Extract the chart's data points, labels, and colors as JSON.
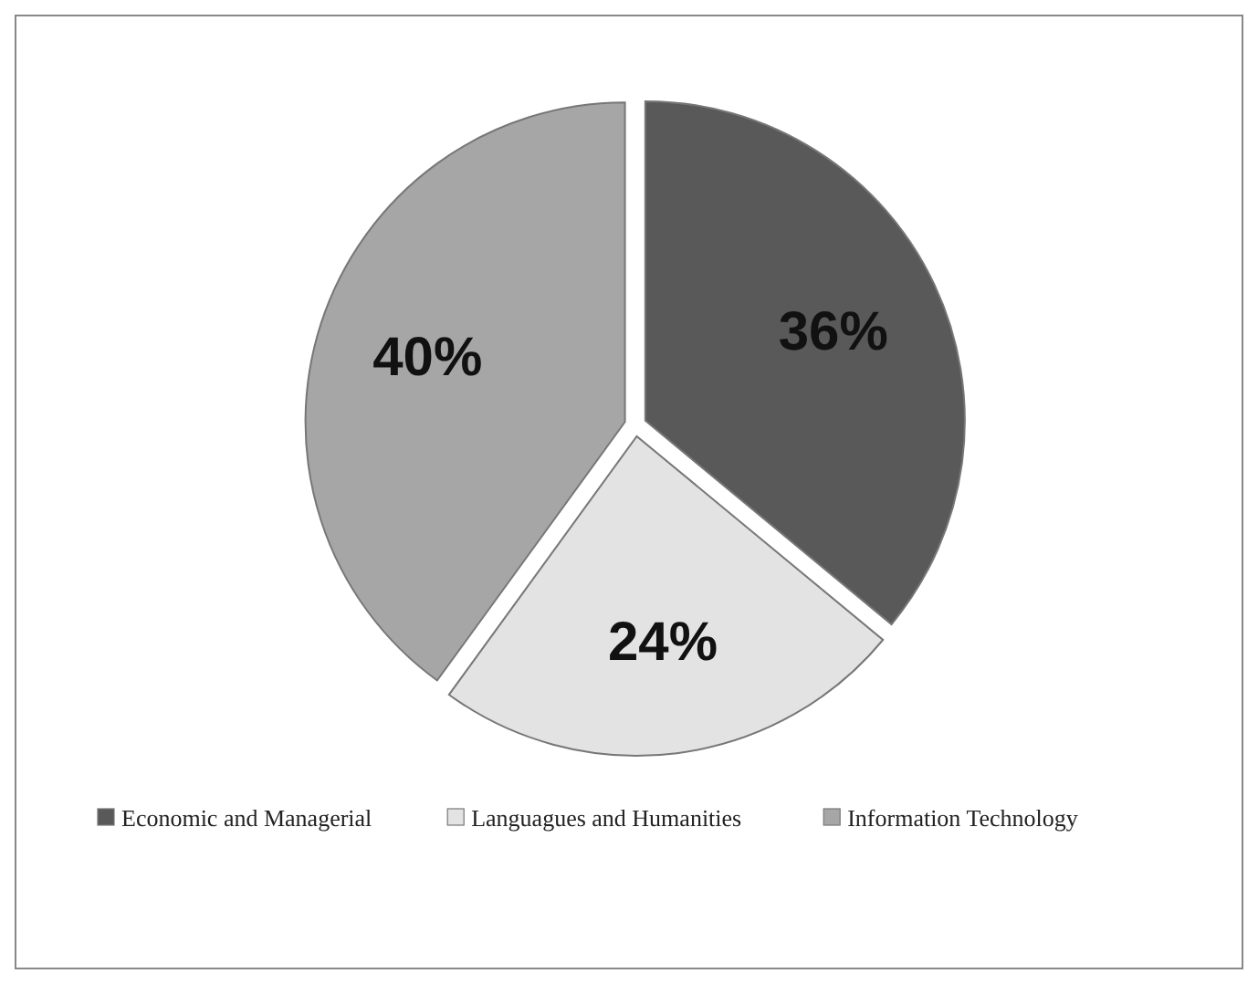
{
  "chart_data": {
    "type": "pie",
    "categories": [
      "Economic and Managerial",
      "Languagues and Humanities",
      "Information Technology"
    ],
    "values": [
      36,
      24,
      40
    ],
    "colors": [
      "#595959",
      "#e3e3e3",
      "#a6a6a6"
    ],
    "value_labels": [
      "36%",
      "24%",
      "40%"
    ],
    "legend": "bottom"
  }
}
